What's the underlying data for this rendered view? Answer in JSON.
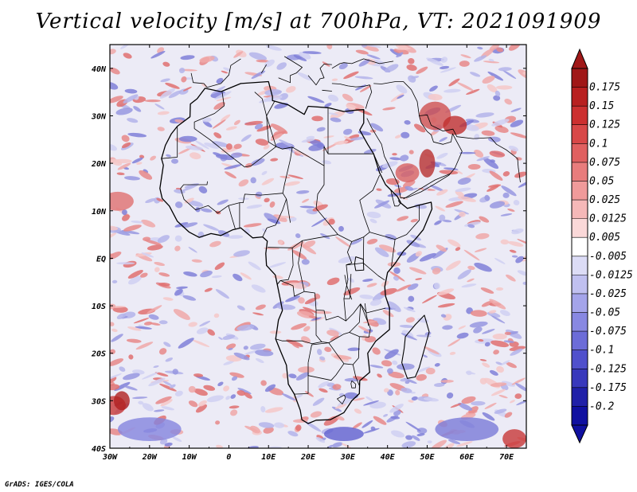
{
  "title": "Vertical velocity [m/s] at 700hPa, VT: 2021091909",
  "credit": "GrADS: IGES/COLA",
  "chart_data": {
    "type": "heatmap",
    "title": "Vertical velocity [m/s] at 700hPa, VT: 2021091909",
    "variable": "Vertical velocity",
    "units": "m/s",
    "level": "700hPa",
    "valid_time": "2021091909",
    "x_ticks": [
      "30W",
      "20W",
      "10W",
      "0",
      "10E",
      "20E",
      "30E",
      "40E",
      "50E",
      "60E",
      "70E"
    ],
    "y_ticks": [
      "40N",
      "30N",
      "20N",
      "10N",
      "EQ",
      "10S",
      "20S",
      "30S",
      "40S"
    ],
    "xlim": [
      -30,
      75
    ],
    "ylim": [
      -40,
      45
    ],
    "colorbar": {
      "labels": [
        "0.175",
        "0.15",
        "0.125",
        "0.1",
        "0.075",
        "0.05",
        "0.025",
        "0.0125",
        "0.005",
        "-0.005",
        "-0.0125",
        "-0.025",
        "-0.05",
        "-0.075",
        "-0.1",
        "-0.125",
        "-0.175",
        "-0.2"
      ],
      "colors": [
        "#a01818",
        "#b82020",
        "#cc3030",
        "#d84848",
        "#e06060",
        "#e87c7c",
        "#f09a9a",
        "#f5b8b8",
        "#fad8d8",
        "#ffffff",
        "#dcdcf6",
        "#c0c0f0",
        "#a4a4ea",
        "#8888e2",
        "#6c6cd8",
        "#5050cc",
        "#3838bc",
        "#2020a8",
        "#1010a0"
      ],
      "extend": "both"
    }
  }
}
